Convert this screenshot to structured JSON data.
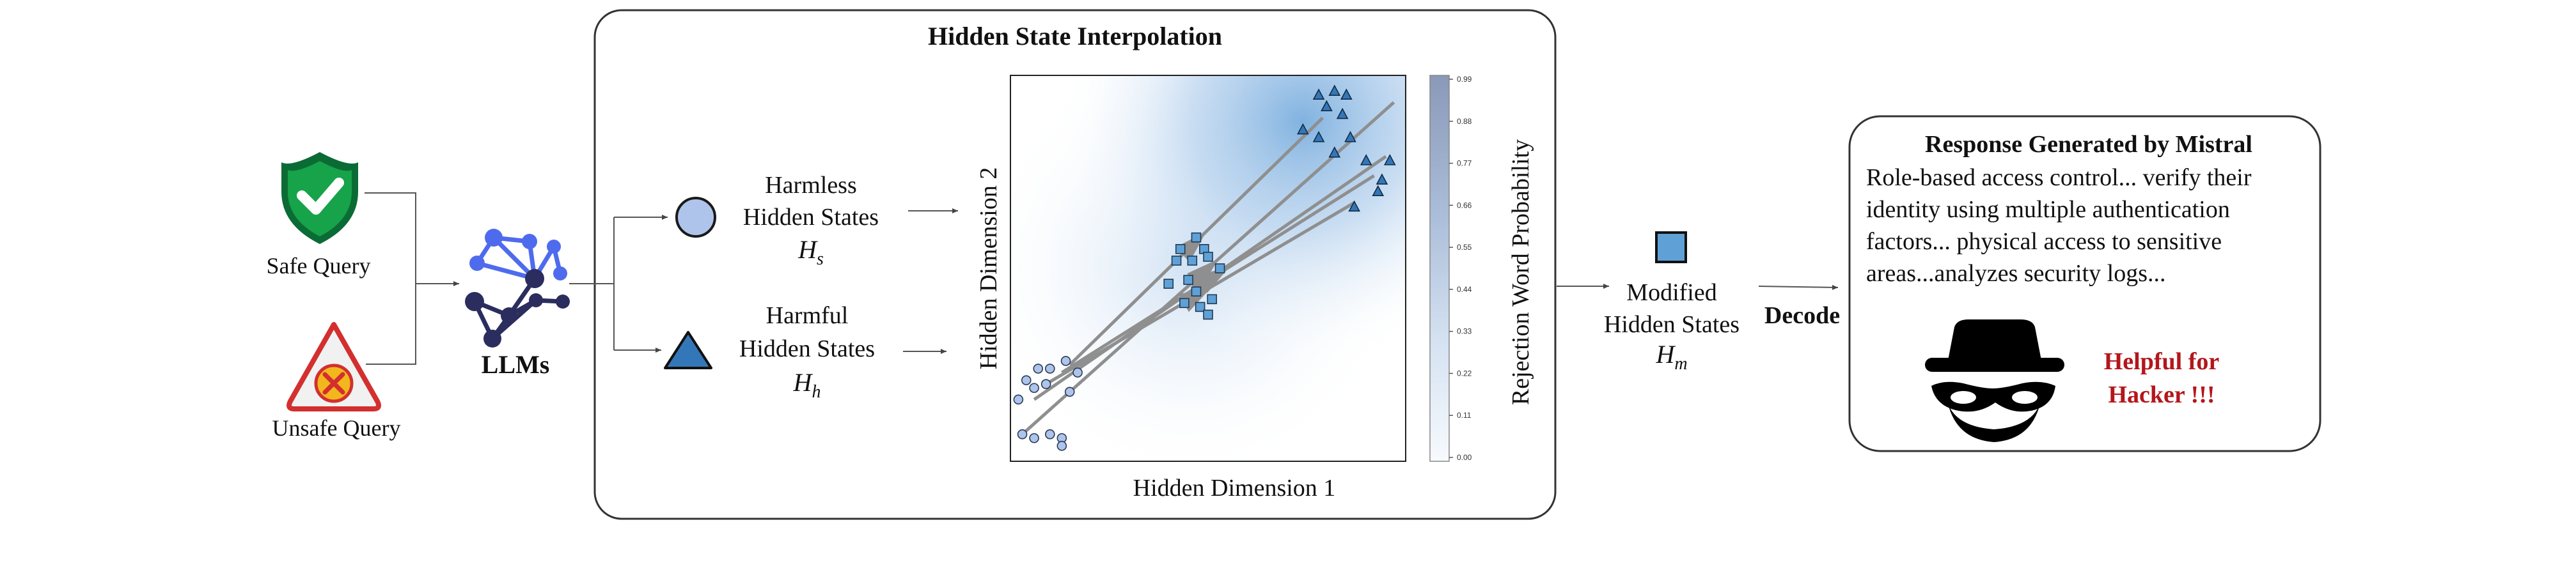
{
  "inputs": {
    "safe_label": "Safe Query",
    "unsafe_label": "Unsafe Query",
    "llm_label": "LLMs"
  },
  "interpolation": {
    "title": "Hidden State Interpolation",
    "harmless_line1": "Harmless",
    "harmless_line2": "Hidden States",
    "harmless_symbol": "H",
    "harmless_sub": "s",
    "harmful_line1": "Harmful",
    "harmful_line2": "Hidden States",
    "harmful_symbol": "H",
    "harmful_sub": "h",
    "plot_xlabel": "Hidden Dimension 1",
    "plot_ylabel": "Hidden Dimension 2",
    "colorbar_label": "Rejection Word Probability",
    "colorbar_ticks": [
      "0.99",
      "0.88",
      "0.77",
      "0.66",
      "0.55",
      "0.44",
      "0.33",
      "0.22",
      "0.11",
      "0.00"
    ]
  },
  "output": {
    "modified_line1": "Modified",
    "modified_line2": "Hidden States",
    "modified_symbol": "H",
    "modified_sub": "m",
    "decode_label": "Decode",
    "response_title": "Response Generated by Mistral",
    "response_lines": [
      "Role-based access control... verify their",
      "identity using multiple authentication",
      "factors... physical access to sensitive",
      "areas...analyzes security logs..."
    ],
    "warning_line1": "Helpful for",
    "warning_line2": "Hacker !!!"
  },
  "colors": {
    "shield_green": "#16a34a",
    "warning_red": "#d32f2f",
    "llm_blue": "#4f6bed",
    "llm_dark": "#2b2d5e",
    "circle_fill": "#aec4ea",
    "triangle_fill": "#3477b8",
    "square_fill": "#5fa1d6",
    "accent_red": "#b3161b"
  },
  "scatter": {
    "x_range": [
      0,
      1
    ],
    "y_range": [
      0,
      1
    ],
    "harmless_points": [
      [
        0.03,
        0.07
      ],
      [
        0.06,
        0.06
      ],
      [
        0.1,
        0.07
      ],
      [
        0.13,
        0.06
      ],
      [
        0.13,
        0.04
      ],
      [
        0.02,
        0.16
      ],
      [
        0.06,
        0.19
      ],
      [
        0.09,
        0.2
      ],
      [
        0.15,
        0.18
      ],
      [
        0.17,
        0.23
      ],
      [
        0.1,
        0.24
      ],
      [
        0.14,
        0.26
      ],
      [
        0.07,
        0.24
      ],
      [
        0.04,
        0.21
      ]
    ],
    "harmful_points": [
      [
        0.78,
        0.95
      ],
      [
        0.82,
        0.96
      ],
      [
        0.85,
        0.95
      ],
      [
        0.8,
        0.92
      ],
      [
        0.84,
        0.9
      ],
      [
        0.74,
        0.86
      ],
      [
        0.78,
        0.84
      ],
      [
        0.86,
        0.84
      ],
      [
        0.9,
        0.78
      ],
      [
        0.96,
        0.78
      ],
      [
        0.93,
        0.7
      ],
      [
        0.87,
        0.66
      ],
      [
        0.94,
        0.73
      ],
      [
        0.82,
        0.8
      ]
    ],
    "modified_points": [
      [
        0.42,
        0.52
      ],
      [
        0.46,
        0.52
      ],
      [
        0.49,
        0.55
      ],
      [
        0.5,
        0.53
      ],
      [
        0.45,
        0.47
      ],
      [
        0.4,
        0.46
      ],
      [
        0.47,
        0.44
      ],
      [
        0.51,
        0.42
      ],
      [
        0.44,
        0.41
      ],
      [
        0.48,
        0.4
      ],
      [
        0.5,
        0.38
      ],
      [
        0.43,
        0.55
      ],
      [
        0.47,
        0.58
      ],
      [
        0.53,
        0.5
      ]
    ],
    "arrows": [
      [
        [
          0.03,
          0.07
        ],
        [
          0.97,
          0.93
        ]
      ],
      [
        [
          0.06,
          0.16
        ],
        [
          0.95,
          0.79
        ]
      ],
      [
        [
          0.09,
          0.2
        ],
        [
          0.87,
          0.67
        ]
      ],
      [
        [
          0.13,
          0.23
        ],
        [
          0.92,
          0.74
        ]
      ],
      [
        [
          0.15,
          0.25
        ],
        [
          0.79,
          0.89
        ]
      ]
    ]
  }
}
